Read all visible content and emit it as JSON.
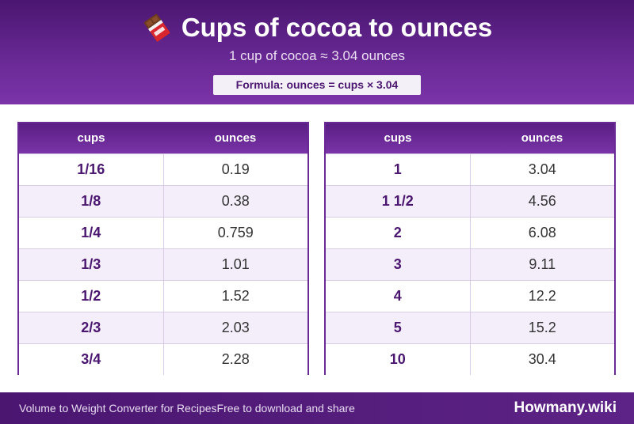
{
  "header": {
    "title": "Cups of cocoa to ounces",
    "subtitle": "1 cup of cocoa ≈ 3.04 ounces",
    "formula": "Formula: ounces = cups × 3.04",
    "icon": "chocolate-bar-icon"
  },
  "tables": [
    {
      "col_cups": "cups",
      "col_ounces": "ounces",
      "rows": [
        {
          "cups": "1/16",
          "ounces": "0.19"
        },
        {
          "cups": "1/8",
          "ounces": "0.38"
        },
        {
          "cups": "1/4",
          "ounces": "0.759"
        },
        {
          "cups": "1/3",
          "ounces": "1.01"
        },
        {
          "cups": "1/2",
          "ounces": "1.52"
        },
        {
          "cups": "2/3",
          "ounces": "2.03"
        },
        {
          "cups": "3/4",
          "ounces": "2.28"
        }
      ]
    },
    {
      "col_cups": "cups",
      "col_ounces": "ounces",
      "rows": [
        {
          "cups": "1",
          "ounces": "3.04"
        },
        {
          "cups": "1 1/2",
          "ounces": "4.56"
        },
        {
          "cups": "2",
          "ounces": "6.08"
        },
        {
          "cups": "3",
          "ounces": "9.11"
        },
        {
          "cups": "4",
          "ounces": "12.2"
        },
        {
          "cups": "5",
          "ounces": "15.2"
        },
        {
          "cups": "10",
          "ounces": "30.4"
        }
      ]
    }
  ],
  "footer": {
    "left_text": "Volume to Weight Converter for Recipes",
    "middle_text": "Free to download and share",
    "brand": "Howmany.wiki"
  },
  "colors": {
    "accent": "#6a2a96",
    "header_dark": "#4a1670",
    "row_alt": "#f3eefa"
  }
}
